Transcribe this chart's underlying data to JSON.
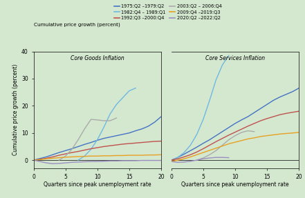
{
  "title_left": "Core Goods Inflation",
  "title_right": "Core Services Inflation",
  "ylabel": "Cumulative price growth (percent)",
  "xlabel": "Quarters since peak unemployment rate",
  "xlim": [
    0,
    20
  ],
  "ylim": [
    -3,
    40
  ],
  "xticks": [
    0,
    5,
    10,
    15,
    20
  ],
  "yticks": [
    0,
    10,
    20,
    30,
    40
  ],
  "bg_color": "#d4e8d0",
  "series": [
    {
      "label": "1975:Q2 –1979:Q2",
      "color": "#4472c4",
      "goods_x": [
        0,
        1,
        2,
        3,
        4,
        5,
        6,
        7,
        8,
        9,
        10,
        11,
        12,
        13,
        14,
        15,
        16,
        17,
        18,
        19,
        20
      ],
      "goods_y": [
        0,
        0.6,
        1.2,
        2.0,
        2.8,
        3.5,
        4.2,
        5.0,
        5.8,
        6.5,
        7.3,
        8.0,
        8.5,
        9.0,
        9.5,
        10.0,
        10.8,
        11.5,
        12.5,
        14.0,
        16.0
      ],
      "services_x": [
        0,
        1,
        2,
        3,
        4,
        5,
        6,
        7,
        8,
        9,
        10,
        11,
        12,
        13,
        14,
        15,
        16,
        17,
        18,
        19,
        20
      ],
      "services_y": [
        0,
        1.0,
        2.2,
        3.5,
        4.8,
        6.2,
        7.5,
        9.0,
        10.5,
        12.0,
        13.5,
        14.8,
        16.0,
        17.5,
        19.0,
        20.5,
        22.0,
        23.2,
        24.2,
        25.2,
        26.5
      ]
    },
    {
      "label": "1982:Q4 – 1989:Q1",
      "color": "#70b8e0",
      "goods_x": [
        7,
        8,
        9,
        10,
        11,
        12,
        13,
        14,
        15,
        16
      ],
      "goods_y": [
        0,
        1.5,
        4.0,
        7.5,
        12.0,
        17.0,
        20.5,
        23.0,
        25.5,
        26.5
      ],
      "services_x": [
        0,
        1,
        2,
        3,
        4,
        5,
        6,
        7,
        8,
        9
      ],
      "services_y": [
        0,
        1.0,
        2.8,
        5.5,
        9.5,
        15.0,
        22.0,
        29.5,
        35.0,
        38.5
      ]
    },
    {
      "label": "1992:Q3 –2000:Q4",
      "color": "#c0504d",
      "goods_x": [
        0,
        1,
        2,
        3,
        4,
        5,
        6,
        7,
        8,
        9,
        10,
        11,
        12,
        13,
        14,
        15,
        16,
        17,
        18,
        19,
        20
      ],
      "goods_y": [
        0,
        0.3,
        0.7,
        1.2,
        1.8,
        2.3,
        2.8,
        3.2,
        3.7,
        4.2,
        4.6,
        5.0,
        5.3,
        5.6,
        5.9,
        6.1,
        6.3,
        6.5,
        6.7,
        6.9,
        7.0
      ],
      "services_x": [
        0,
        1,
        2,
        3,
        4,
        5,
        6,
        7,
        8,
        9,
        10,
        11,
        12,
        13,
        14,
        15,
        16,
        17,
        18,
        19,
        20
      ],
      "services_y": [
        0,
        0.5,
        1.2,
        2.0,
        3.0,
        4.2,
        5.5,
        6.8,
        8.0,
        9.2,
        10.3,
        11.4,
        12.5,
        13.5,
        14.5,
        15.3,
        16.0,
        16.7,
        17.2,
        17.6,
        18.0
      ]
    },
    {
      "label": "2003:Q2 – 2006:Q4",
      "color": "#aaaaaa",
      "goods_x": [
        4,
        5,
        6,
        7,
        8,
        9,
        10,
        11,
        12,
        13
      ],
      "goods_y": [
        0,
        1.5,
        4.0,
        7.5,
        11.5,
        15.0,
        14.8,
        14.5,
        14.5,
        15.5
      ],
      "services_x": [
        4,
        5,
        6,
        7,
        8,
        9,
        10,
        11,
        12,
        13
      ],
      "services_y": [
        0,
        0.8,
        2.0,
        3.5,
        5.5,
        7.5,
        9.0,
        10.2,
        10.8,
        10.5
      ]
    },
    {
      "label": "2009:Q4 –2019:Q3",
      "color": "#e8a020",
      "goods_x": [
        0,
        1,
        2,
        3,
        4,
        5,
        6,
        7,
        8,
        9,
        10,
        11,
        12,
        13,
        14,
        15,
        16,
        17,
        18,
        19,
        20
      ],
      "goods_y": [
        0,
        0.2,
        0.5,
        0.7,
        0.9,
        1.1,
        1.2,
        1.3,
        1.4,
        1.5,
        1.5,
        1.6,
        1.6,
        1.7,
        1.7,
        1.8,
        1.8,
        1.8,
        1.9,
        1.9,
        2.0
      ],
      "services_x": [
        0,
        1,
        2,
        3,
        4,
        5,
        6,
        7,
        8,
        9,
        10,
        11,
        12,
        13,
        14,
        15,
        16,
        17,
        18,
        19,
        20
      ],
      "services_y": [
        -0.5,
        0.0,
        0.5,
        1.2,
        2.0,
        2.8,
        3.6,
        4.4,
        5.2,
        6.0,
        6.6,
        7.2,
        7.8,
        8.2,
        8.7,
        9.0,
        9.3,
        9.6,
        9.8,
        10.0,
        10.2
      ]
    },
    {
      "label": "2020:Q2 –2022:Q2",
      "color": "#9b8dc0",
      "goods_x": [
        0,
        1,
        2,
        3,
        4,
        5,
        6,
        7,
        8,
        9,
        10,
        11,
        12,
        13,
        14,
        15,
        16,
        17,
        18,
        19,
        20
      ],
      "goods_y": [
        0,
        -0.5,
        -1.0,
        -1.3,
        -1.2,
        -1.0,
        -0.8,
        -0.7,
        -0.6,
        -0.5,
        -0.5,
        -0.4,
        -0.3,
        -0.3,
        -0.2,
        -0.2,
        -0.2,
        -0.1,
        -0.1,
        -0.1,
        -0.1
      ],
      "services_x": [
        0,
        1,
        2,
        3,
        4,
        5,
        6,
        7,
        8,
        9
      ],
      "services_y": [
        -0.5,
        -0.8,
        -0.7,
        -0.4,
        0.0,
        0.5,
        0.8,
        1.0,
        1.0,
        0.9
      ]
    }
  ],
  "legend_labels_col1": [
    "1975:Q2 –1979:Q2",
    "1992:Q3 –2000:Q4",
    "2009:Q4 –2019:Q3"
  ],
  "legend_labels_col2": [
    "1982:Q4 – 1989:Q1",
    "2003:Q2 – 2006:Q4",
    "2020:Q2 –2022:Q2"
  ]
}
